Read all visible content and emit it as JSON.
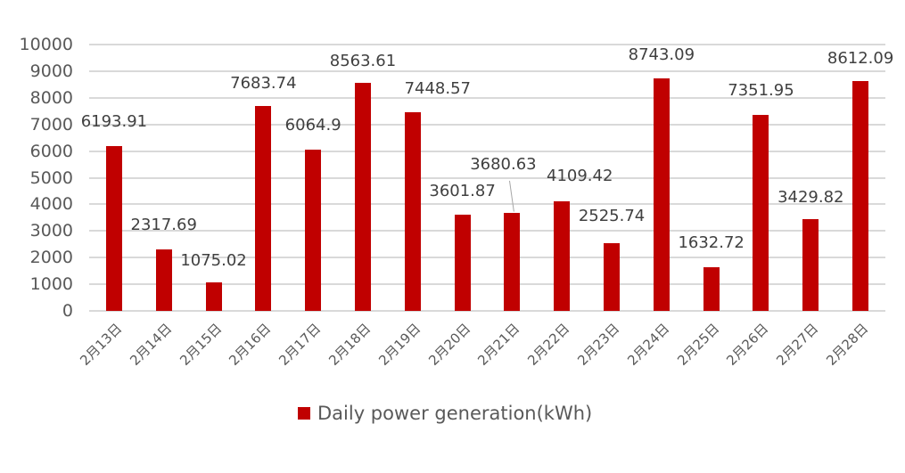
{
  "chart_data": {
    "type": "bar",
    "title": "",
    "xlabel": "",
    "ylabel": "",
    "ylim": [
      0,
      10000
    ],
    "yticks": [
      0,
      1000,
      2000,
      3000,
      4000,
      5000,
      6000,
      7000,
      8000,
      9000,
      10000
    ],
    "grid": true,
    "legend_position": "bottom",
    "categories": [
      "2月13日",
      "2月14日",
      "2月15日",
      "2月16日",
      "2月17日",
      "2月18日",
      "2月19日",
      "2月20日",
      "2月21日",
      "2月22日",
      "2月23日",
      "2月24日",
      "2月25日",
      "2月26日",
      "2月27日",
      "2月28日"
    ],
    "series": [
      {
        "name": "Daily power generation(kWh)",
        "color": "#c00000",
        "values": [
          6193.91,
          2317.69,
          1075.02,
          7683.74,
          6064.9,
          8563.61,
          7448.57,
          3601.87,
          3680.63,
          4109.42,
          2525.74,
          8743.09,
          1632.72,
          7351.95,
          3429.82,
          8612.09
        ],
        "labels": [
          "6193.91",
          "2317.69",
          "1075.02",
          "7683.74",
          "6064.9",
          "8563.61",
          "7448.57",
          "3601.87",
          "3680.63",
          "4109.42",
          "2525.74",
          "8743.09",
          "1632.72",
          "7351.95",
          "3429.82",
          "8612.09"
        ]
      }
    ]
  },
  "legend": {
    "label": "Daily power generation(kWh)"
  },
  "label_offsets": [
    {
      "dx": 0,
      "y": 127
    },
    {
      "dx": 0,
      "y": 243
    },
    {
      "dx": 0,
      "y": 283
    },
    {
      "dx": 0,
      "y": 84
    },
    {
      "dx": 0,
      "y": 131
    },
    {
      "dx": 0,
      "y": 59
    },
    {
      "dx": 28,
      "y": 90
    },
    {
      "dx": 0,
      "y": 205
    },
    {
      "dx": -10,
      "y": 175
    },
    {
      "dx": 20,
      "y": 188
    },
    {
      "dx": 0,
      "y": 233
    },
    {
      "dx": 0,
      "y": 52
    },
    {
      "dx": 0,
      "y": 263
    },
    {
      "dx": 0,
      "y": 92
    },
    {
      "dx": 0,
      "y": 212
    },
    {
      "dx": 0,
      "y": 56
    }
  ]
}
